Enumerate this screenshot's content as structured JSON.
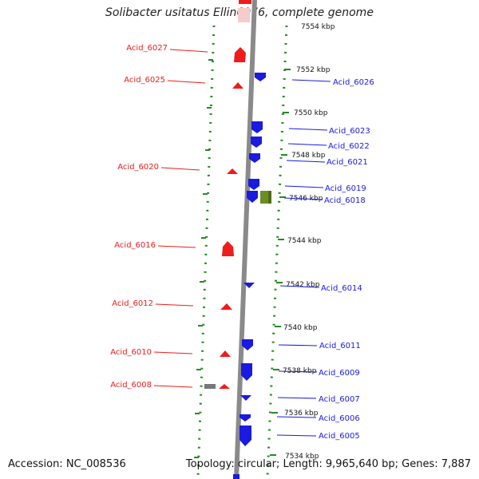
{
  "title": "Solibacter usitatus Ellin6076, complete genome",
  "footer": {
    "accession": "Accession: NC_008536",
    "summary": "Topology: circular; Length: 9,965,640 bp; Genes: 7,887"
  },
  "colors": {
    "forward": "#ee1c1c",
    "reverse": "#1a1ae0",
    "rna": "#6b8e23",
    "pseudo": "#777777",
    "tick": "#228b22",
    "backbone": "#888888"
  },
  "scale_ticks": [
    "7554 kbp",
    "7552 kbp",
    "7550 kbp",
    "7548 kbp",
    "7546 kbp",
    "7544 kbp",
    "7542 kbp",
    "7540 kbp",
    "7538 kbp",
    "7536 kbp",
    "7534 kbp"
  ],
  "left_labels": [
    "Acid_6027",
    "Acid_6025",
    "Acid_6020",
    "Acid_6016",
    "Acid_6012",
    "Acid_6010",
    "Acid_6008"
  ],
  "right_labels": [
    "Acid_6026",
    "Acid_6023",
    "Acid_6022",
    "Acid_6021",
    "Acid_6019",
    "Acid_6018",
    "Acid_6014",
    "Acid_6011",
    "Acid_6009",
    "Acid_6007",
    "Acid_6006",
    "Acid_6005"
  ]
}
